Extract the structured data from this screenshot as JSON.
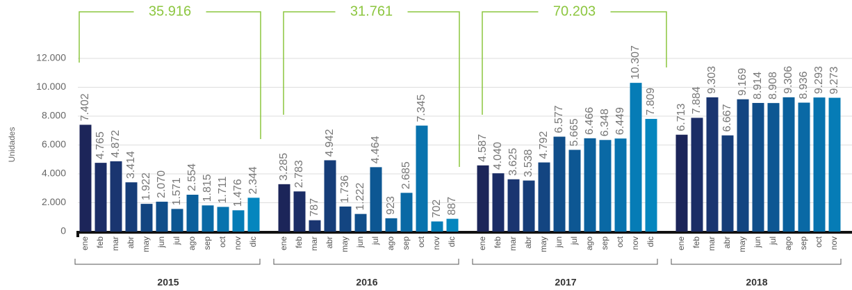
{
  "chart_data": {
    "type": "bar",
    "y_label": "Unidades",
    "ylim": [
      0,
      12000
    ],
    "yticks": [
      0,
      {
        "value": 2000,
        "label": "2.000"
      },
      {
        "value": 4000,
        "label": "4.000"
      },
      {
        "value": 6000,
        "label": "6.000"
      },
      {
        "value": 8000,
        "label": "8.000"
      },
      {
        "value": 10000,
        "label": "10.000"
      },
      {
        "value": 12000,
        "label": "12.000"
      }
    ],
    "grid": true,
    "colors": [
      "#1c2559",
      "#1b2d66",
      "#1a3570",
      "#163d78",
      "#134581",
      "#104e8a",
      "#0d5793",
      "#0b609c",
      "#0a69a5",
      "#0873ae",
      "#067cb6",
      "#0586be"
    ],
    "annotation_color": "#8cc63f",
    "groups": [
      {
        "name": "2015",
        "total": {
          "value": 35916,
          "label": "35.916"
        },
        "categories": [
          "ene",
          "feb",
          "mar",
          "abr",
          "may",
          "jun",
          "jul",
          "ago",
          "sep",
          "oct",
          "nov",
          "dic"
        ],
        "values": [
          7402,
          4765,
          4872,
          3414,
          1922,
          2070,
          1571,
          2554,
          1815,
          1711,
          1476,
          2344
        ],
        "value_labels": [
          "7.402",
          "4.765",
          "4.872",
          "3.414",
          "1.922",
          "2.070",
          "1.571",
          "2.554",
          "1.815",
          "1.711",
          "1.476",
          "2.344"
        ]
      },
      {
        "name": "2016",
        "total": {
          "value": 31761,
          "label": "31.761"
        },
        "categories": [
          "ene",
          "feb",
          "mar",
          "abr",
          "may",
          "jun",
          "jul",
          "ago",
          "sep",
          "oct",
          "nov",
          "dic"
        ],
        "values": [
          3285,
          2783,
          787,
          4942,
          1736,
          1222,
          4464,
          923,
          2685,
          7345,
          702,
          887
        ],
        "value_labels": [
          "3.285",
          "2.783",
          "787",
          "4.942",
          "1.736",
          "1.222",
          "4.464",
          "923",
          "2.685",
          "7.345",
          "702",
          "887"
        ]
      },
      {
        "name": "2017",
        "total": {
          "value": 70203,
          "label": "70.203"
        },
        "categories": [
          "ene",
          "feb",
          "mar",
          "abr",
          "may",
          "jun",
          "jul",
          "ago",
          "sep",
          "oct",
          "nov",
          "dic"
        ],
        "values": [
          4587,
          4040,
          3625,
          3538,
          4792,
          6577,
          5665,
          6466,
          6348,
          6449,
          10307,
          7809
        ],
        "value_labels": [
          "4.587",
          "4.040",
          "3.625",
          "3.538",
          "4.792",
          "6.577",
          "5.665",
          "6.466",
          "6.348",
          "6.449",
          "10.307",
          "7.809"
        ]
      },
      {
        "name": "2018",
        "categories": [
          "ene",
          "feb",
          "mar",
          "abr",
          "may",
          "jun",
          "jul",
          "ago",
          "sep",
          "oct",
          "nov"
        ],
        "values": [
          6713,
          7884,
          9303,
          6667,
          9169,
          8914,
          8908,
          9306,
          8936,
          9293,
          9273
        ],
        "value_labels": [
          "6.713",
          "7.884",
          "9.303",
          "6.667",
          "9.169",
          "8.914",
          "8.908",
          "9.306",
          "8.936",
          "9.293",
          "9.273"
        ]
      }
    ]
  }
}
